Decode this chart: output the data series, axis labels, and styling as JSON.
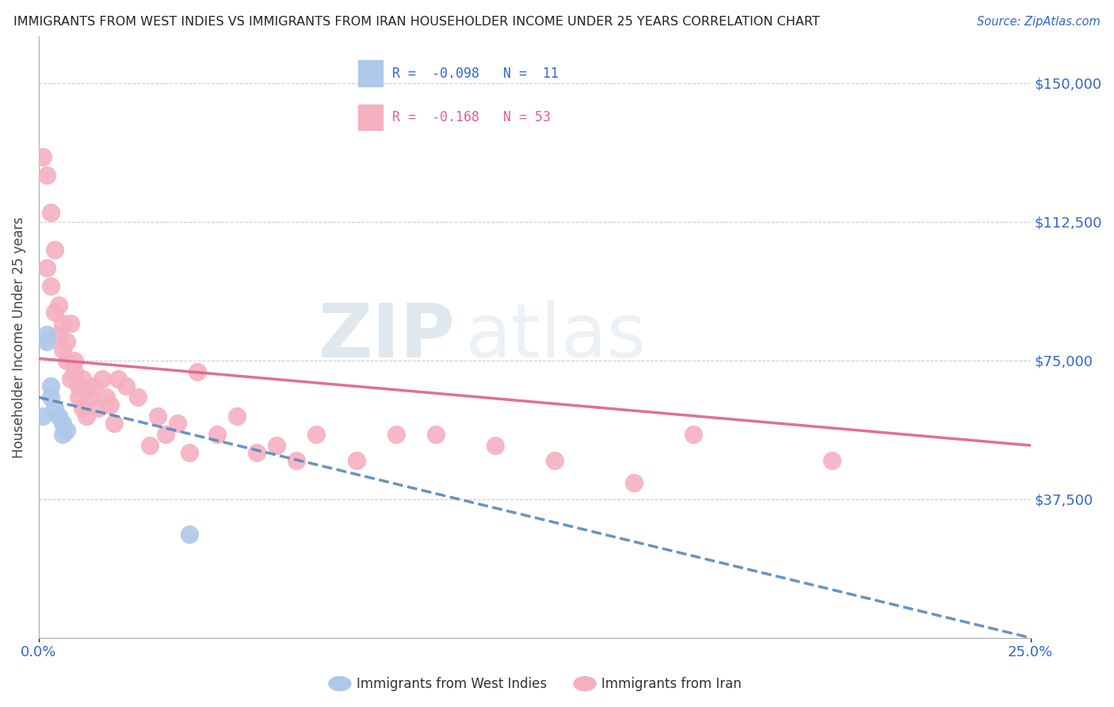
{
  "title": "IMMIGRANTS FROM WEST INDIES VS IMMIGRANTS FROM IRAN HOUSEHOLDER INCOME UNDER 25 YEARS CORRELATION CHART",
  "source": "Source: ZipAtlas.com",
  "ylabel": "Householder Income Under 25 years",
  "xlim": [
    0.0,
    0.25
  ],
  "ylim": [
    0,
    162500
  ],
  "ytick_vals": [
    0,
    37500,
    75000,
    112500,
    150000
  ],
  "ytick_labels": [
    "",
    "$37,500",
    "$75,000",
    "$112,500",
    "$150,000"
  ],
  "xtick_vals": [
    0.0,
    0.25
  ],
  "xtick_labels": [
    "0.0%",
    "25.0%"
  ],
  "color_west_indies_scatter": "#adc8e8",
  "color_iran_scatter": "#f5b0c0",
  "color_line_west_indies": "#5588bb",
  "color_line_iran": "#e06080",
  "watermark_zip": "ZIP",
  "watermark_atlas": "atlas",
  "bg_color": "#ffffff",
  "grid_color": "#cccccc",
  "legend_wi_r": "R = -0.098",
  "legend_wi_n": "N =  11",
  "legend_ir_r": "R = -0.168",
  "legend_ir_n": "N = 53",
  "wi_line_x0": 0.0,
  "wi_line_y0": 65000,
  "wi_line_x1": 0.25,
  "wi_line_y1": 0,
  "ir_line_x0": 0.0,
  "ir_line_y0": 75500,
  "ir_line_x1": 0.25,
  "ir_line_y1": 52000,
  "west_indies_x": [
    0.001,
    0.002,
    0.002,
    0.003,
    0.003,
    0.004,
    0.005,
    0.006,
    0.006,
    0.007,
    0.038
  ],
  "west_indies_y": [
    60000,
    80000,
    82000,
    68000,
    65000,
    62000,
    60000,
    58000,
    55000,
    56000,
    28000
  ],
  "iran_x": [
    0.001,
    0.002,
    0.002,
    0.003,
    0.003,
    0.004,
    0.004,
    0.005,
    0.005,
    0.006,
    0.006,
    0.007,
    0.007,
    0.008,
    0.008,
    0.009,
    0.009,
    0.01,
    0.01,
    0.011,
    0.011,
    0.012,
    0.012,
    0.013,
    0.014,
    0.015,
    0.016,
    0.017,
    0.018,
    0.019,
    0.02,
    0.022,
    0.025,
    0.028,
    0.03,
    0.032,
    0.035,
    0.038,
    0.04,
    0.045,
    0.05,
    0.055,
    0.06,
    0.065,
    0.07,
    0.08,
    0.09,
    0.1,
    0.115,
    0.13,
    0.15,
    0.165,
    0.2
  ],
  "iran_y": [
    130000,
    125000,
    100000,
    115000,
    95000,
    88000,
    105000,
    82000,
    90000,
    78000,
    85000,
    75000,
    80000,
    70000,
    85000,
    75000,
    72000,
    68000,
    65000,
    70000,
    62000,
    67000,
    60000,
    65000,
    68000,
    62000,
    70000,
    65000,
    63000,
    58000,
    70000,
    68000,
    65000,
    52000,
    60000,
    55000,
    58000,
    50000,
    72000,
    55000,
    60000,
    50000,
    52000,
    48000,
    55000,
    48000,
    55000,
    55000,
    52000,
    48000,
    42000,
    55000,
    48000
  ]
}
